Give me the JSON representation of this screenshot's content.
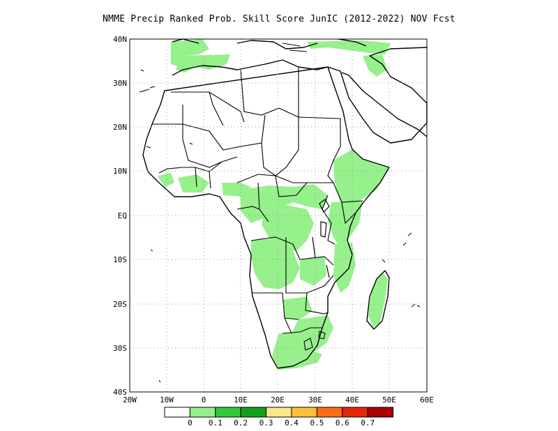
{
  "title": "NMME Precip Ranked Prob. Skill Score JunIC (2012-2022) NOV Fcst",
  "lat_labels": [
    "40N",
    "30N",
    "20N",
    "10N",
    "EQ",
    "10S",
    "20S",
    "30S",
    "40S"
  ],
  "lon_labels": [
    "20W",
    "10W",
    "0",
    "10E",
    "20E",
    "30E",
    "40E",
    "50E",
    "60E"
  ],
  "colorbar": {
    "colors": [
      "#ffffff",
      "#96f08c",
      "#32c83c",
      "#14a01e",
      "#fae68c",
      "#ffbe3c",
      "#ff6e14",
      "#e6280a",
      "#aa0000"
    ],
    "labels": [
      "0",
      "0.1",
      "0.2",
      "0.3",
      "0.4",
      "0.5",
      "0.6",
      "0.7"
    ]
  },
  "colors": {
    "skill_fill": "#96f08c",
    "coast": "#000000",
    "grid": "#999999"
  }
}
